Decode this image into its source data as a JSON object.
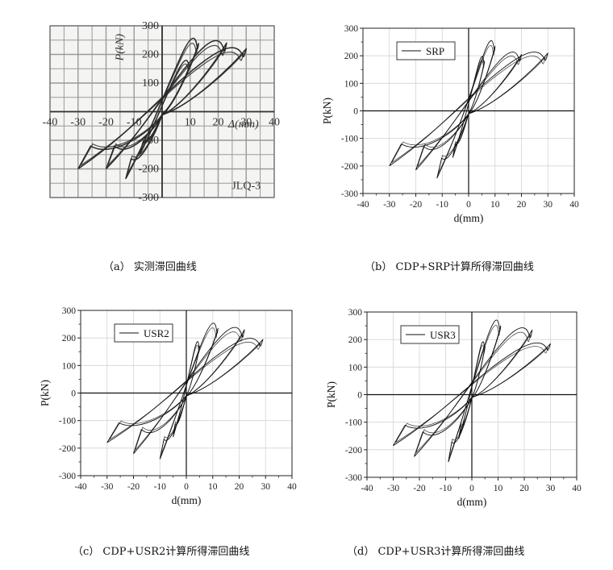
{
  "chart_data": [
    {
      "id": "a",
      "type": "line",
      "caption": "（a） 实测滞回曲线",
      "xlabel": "Δ(mm)",
      "ylabel": "P(kN)",
      "specimen_label": "JLQ-3",
      "xlim": [
        -40,
        40
      ],
      "ylim": [
        -300,
        300
      ],
      "xticks": [
        -40,
        -30,
        -20,
        -10,
        0,
        10,
        20,
        30,
        40
      ],
      "xtick_labels": [
        "-40",
        "-30",
        "-20",
        "-10",
        "",
        "10",
        "20",
        "30",
        "40"
      ],
      "yticks": [
        -300,
        -200,
        -100,
        0,
        100,
        200,
        300
      ],
      "ytick_labels": [
        "-300",
        "-200",
        "-100",
        "",
        "100",
        "200",
        "300"
      ],
      "grid": true,
      "series": [
        {
          "x": [
            -20,
            0,
            23
          ],
          "y": [
            -200,
            0,
            240
          ]
        },
        {
          "x": [
            -13,
            0,
            13
          ],
          "y": [
            -235,
            0,
            238
          ]
        },
        {
          "x": [
            -30,
            0,
            30
          ],
          "y": [
            -200,
            0,
            220
          ]
        },
        {
          "x": [
            -8,
            0,
            10
          ],
          "y": [
            -150,
            0,
            165
          ]
        }
      ]
    },
    {
      "id": "b",
      "type": "line",
      "caption": "（b） CDP+SRP计算所得滞回曲线",
      "xlabel": "d(mm)",
      "ylabel": "P(kN)",
      "legend": "SRP",
      "legend_position": "top-left",
      "xlim": [
        -40,
        40
      ],
      "ylim": [
        -300,
        300
      ],
      "xticks": [
        -40,
        -30,
        -20,
        -10,
        0,
        10,
        20,
        30,
        40
      ],
      "xtick_labels": [
        "-40",
        "-30",
        "-20",
        "-10",
        "0",
        "10",
        "20",
        "30",
        "40"
      ],
      "yticks": [
        -300,
        -200,
        -100,
        0,
        100,
        200,
        300
      ],
      "ytick_labels": [
        "-300",
        "-200",
        "-100",
        "0",
        "100",
        "200",
        "300"
      ],
      "grid": true,
      "series": [
        {
          "x": [
            -30,
            0,
            30
          ],
          "y": [
            -200,
            0,
            210
          ]
        },
        {
          "x": [
            -20,
            0,
            20
          ],
          "y": [
            -215,
            0,
            205
          ]
        },
        {
          "x": [
            -12,
            0,
            10
          ],
          "y": [
            -245,
            0,
            235
          ]
        },
        {
          "x": [
            -6,
            0,
            6
          ],
          "y": [
            -170,
            0,
            180
          ]
        }
      ]
    },
    {
      "id": "c",
      "type": "line",
      "caption": "（c） CDP+USR2计算所得滞回曲线",
      "xlabel": "d(mm)",
      "ylabel": "P(kN)",
      "legend": "USR2",
      "legend_position": "top-left",
      "xlim": [
        -40,
        40
      ],
      "ylim": [
        -300,
        300
      ],
      "xticks": [
        -40,
        -30,
        -20,
        -10,
        0,
        10,
        20,
        30,
        40
      ],
      "xtick_labels": [
        "-40",
        "-30",
        "-20",
        "-10",
        "0",
        "10",
        "20",
        "30",
        "40"
      ],
      "yticks": [
        -300,
        -200,
        -100,
        0,
        100,
        200,
        300
      ],
      "ytick_labels": [
        "-300",
        "-200",
        "-100",
        "0",
        "100",
        "200",
        "300"
      ],
      "grid": true,
      "series": [
        {
          "x": [
            -30,
            0,
            29
          ],
          "y": [
            -180,
            0,
            195
          ]
        },
        {
          "x": [
            -20,
            0,
            22
          ],
          "y": [
            -220,
            0,
            230
          ]
        },
        {
          "x": [
            -10,
            0,
            12
          ],
          "y": [
            -240,
            0,
            235
          ]
        },
        {
          "x": [
            -5,
            0,
            5
          ],
          "y": [
            -160,
            0,
            170
          ]
        }
      ]
    },
    {
      "id": "d",
      "type": "line",
      "caption": "（d） CDP+USR3计算所得滞回曲线",
      "xlabel": "d(mm)",
      "ylabel": "P(kN)",
      "legend": "USR3",
      "legend_position": "top-left",
      "xlim": [
        -40,
        40
      ],
      "ylim": [
        -300,
        300
      ],
      "xticks": [
        -40,
        -30,
        -20,
        -10,
        0,
        10,
        20,
        30,
        40
      ],
      "xtick_labels": [
        "-40",
        "-30",
        "-20",
        "-10",
        "0",
        "10",
        "20",
        "30",
        "40"
      ],
      "yticks": [
        -300,
        -200,
        -100,
        0,
        100,
        200,
        300
      ],
      "ytick_labels": [
        "-300",
        "-200",
        "-100",
        "0",
        "100",
        "200",
        "300"
      ],
      "grid": true,
      "series": [
        {
          "x": [
            -30,
            0,
            30
          ],
          "y": [
            -185,
            0,
            185
          ]
        },
        {
          "x": [
            -22,
            0,
            23
          ],
          "y": [
            -225,
            0,
            235
          ]
        },
        {
          "x": [
            -9,
            0,
            11
          ],
          "y": [
            -245,
            0,
            250
          ]
        },
        {
          "x": [
            -5,
            0,
            5
          ],
          "y": [
            -160,
            0,
            175
          ]
        }
      ]
    }
  ]
}
